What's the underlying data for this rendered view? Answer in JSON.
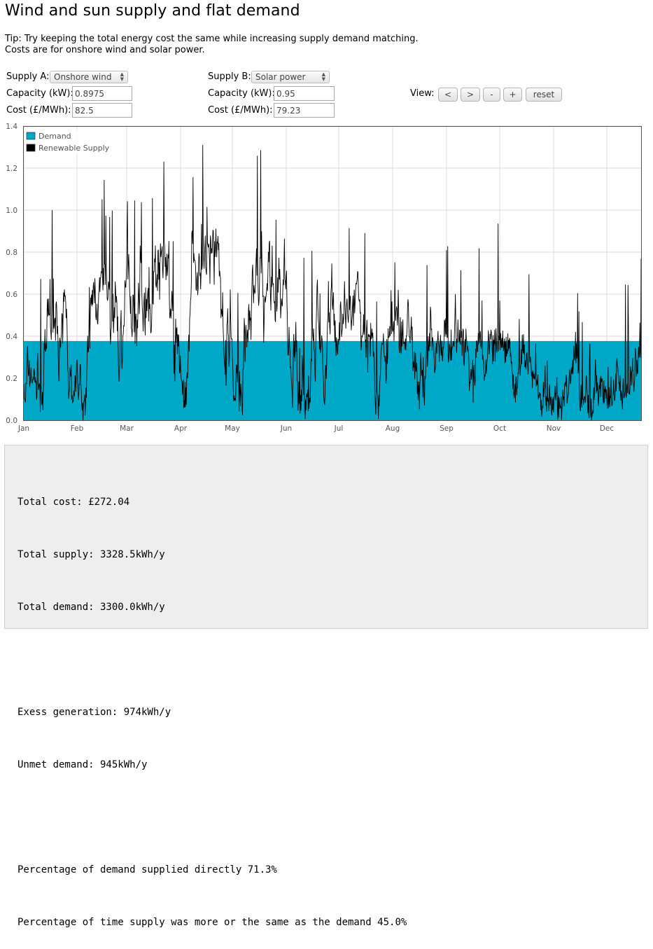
{
  "title": "Wind and sun supply and flat demand",
  "tip": {
    "line1": "Tip: Try keeping the total energy cost the same while increasing supply demand matching.",
    "line2": "Costs are for onshore wind and solar power."
  },
  "supply_a": {
    "label": "Supply A:",
    "type": "Onshore wind",
    "capacity_label": "Capacity (kW):",
    "capacity": "0.8975",
    "cost_label": "Cost (£/MWh):",
    "cost": "82.5"
  },
  "supply_b": {
    "label": "Supply B:",
    "type": "Solar power",
    "capacity_label": "Capacity (kW):",
    "capacity": "0.95",
    "cost_label": "Cost (£/MWh):",
    "cost": "79.23"
  },
  "view": {
    "label": "View:",
    "prev": "<",
    "next": ">",
    "zoom_out": "-",
    "zoom_in": "+",
    "reset": "reset"
  },
  "chart_data": {
    "type": "area",
    "x_ticks": [
      "Jan",
      "Feb",
      "Mar",
      "Apr",
      "May",
      "Jun",
      "Jul",
      "Aug",
      "Sep",
      "Oct",
      "Nov",
      "Dec"
    ],
    "y_ticks": [
      "0.0",
      "0.2",
      "0.4",
      "0.6",
      "0.8",
      "1.0",
      "1.2",
      "1.4"
    ],
    "ylim": [
      0,
      1.4
    ],
    "grid": true,
    "legend_placement": "top-left",
    "series": [
      {
        "name": "Demand",
        "color": "#00a8c8",
        "constant_value": 0.377
      },
      {
        "name": "Renewable Supply",
        "color": "#000000",
        "peak_value": 1.31
      }
    ]
  },
  "stats": {
    "total_cost": "Total cost: £272.04",
    "total_supply": "Total supply: 3328.5kWh/y",
    "total_demand": "Total demand: 3300.0kWh/y",
    "excess": "Exess generation: 974kWh/y",
    "unmet": "Unmet demand: 945kWh/y",
    "pct_direct": "Percentage of demand supplied directly 71.3%",
    "pct_time": "Percentage of time supply was more or the same as the demand 45.0%"
  }
}
